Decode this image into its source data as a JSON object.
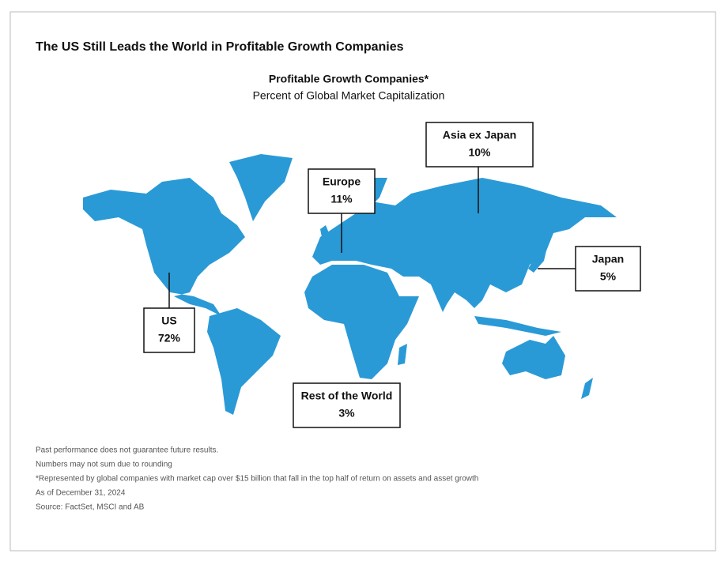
{
  "header": {
    "title": "The US Still Leads the World in Profitable Growth Companies",
    "subtitle": "Profitable Growth Companies*",
    "caption": "Percent of Global Market Capitalization"
  },
  "regions": [
    {
      "name": "Asia ex Japan",
      "value": "10%"
    },
    {
      "name": "Europe",
      "value": "11%"
    },
    {
      "name": "Japan",
      "value": "5%"
    },
    {
      "name": "US",
      "value": "72%"
    },
    {
      "name": "Rest of the World",
      "value": "3%"
    }
  ],
  "footnotes": [
    "Past performance does not guarantee future results.",
    "Numbers may not sum due to rounding",
    "*Represented by global companies with market cap over $15 billion that fall in the top half of return on assets and asset growth",
    "As of December 31, 2024",
    "Source: FactSet, MSCI and AB"
  ]
}
